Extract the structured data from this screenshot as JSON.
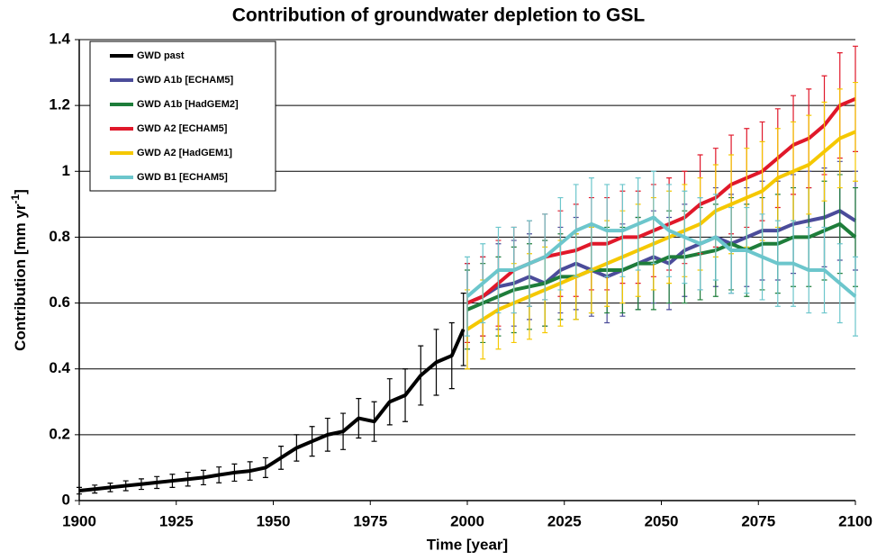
{
  "chart_data": {
    "type": "line",
    "title": "Contribution of groundwater depletion to GSL",
    "xlabel": "Time [year]",
    "ylabel": "Contribution [mm yr",
    "ylabel_sup": "-1",
    "ylabel_end": "]",
    "xlim": [
      1900,
      2100
    ],
    "xticks": [
      1900,
      1925,
      1950,
      1975,
      2000,
      2025,
      2050,
      2075,
      2100
    ],
    "ylim": [
      0,
      1.4
    ],
    "yticks": [
      0,
      0.2,
      0.4,
      0.6,
      0.8,
      1,
      1.2,
      1.4
    ],
    "grid": true,
    "legend": "upper left",
    "series": [
      {
        "name": "GWD past",
        "color": "#000000",
        "x": [
          1900,
          1904,
          1908,
          1912,
          1916,
          1920,
          1924,
          1928,
          1932,
          1936,
          1940,
          1944,
          1948,
          1952,
          1956,
          1960,
          1964,
          1968,
          1972,
          1976,
          1980,
          1984,
          1988,
          1992,
          1996,
          1999
        ],
        "values": [
          0.03,
          0.035,
          0.04,
          0.045,
          0.05,
          0.055,
          0.06,
          0.065,
          0.07,
          0.078,
          0.085,
          0.09,
          0.1,
          0.13,
          0.16,
          0.18,
          0.2,
          0.21,
          0.25,
          0.24,
          0.3,
          0.32,
          0.38,
          0.42,
          0.44,
          0.52
        ],
        "errors": [
          0.01,
          0.012,
          0.013,
          0.015,
          0.016,
          0.018,
          0.02,
          0.021,
          0.022,
          0.024,
          0.026,
          0.028,
          0.03,
          0.035,
          0.04,
          0.045,
          0.05,
          0.055,
          0.06,
          0.06,
          0.07,
          0.08,
          0.09,
          0.1,
          0.1,
          0.11
        ]
      },
      {
        "name": "GWD A1b [ECHAM5]",
        "color": "#4b4c9a",
        "x": [
          2000,
          2004,
          2008,
          2012,
          2016,
          2020,
          2024,
          2028,
          2032,
          2036,
          2040,
          2044,
          2048,
          2052,
          2056,
          2060,
          2064,
          2068,
          2072,
          2076,
          2080,
          2084,
          2088,
          2092,
          2096,
          2100
        ],
        "values": [
          0.6,
          0.62,
          0.65,
          0.66,
          0.68,
          0.66,
          0.7,
          0.72,
          0.7,
          0.68,
          0.7,
          0.72,
          0.74,
          0.72,
          0.76,
          0.78,
          0.8,
          0.78,
          0.8,
          0.82,
          0.82,
          0.84,
          0.85,
          0.86,
          0.88,
          0.85
        ],
        "errors": [
          0.12,
          0.12,
          0.13,
          0.13,
          0.13,
          0.13,
          0.13,
          0.14,
          0.14,
          0.14,
          0.14,
          0.14,
          0.14,
          0.14,
          0.14,
          0.14,
          0.15,
          0.15,
          0.15,
          0.15,
          0.15,
          0.15,
          0.15,
          0.15,
          0.15,
          0.15
        ]
      },
      {
        "name": "GWD A1b [HadGEM2]",
        "color": "#1e7d3a",
        "x": [
          2000,
          2004,
          2008,
          2012,
          2016,
          2020,
          2024,
          2028,
          2032,
          2036,
          2040,
          2044,
          2048,
          2052,
          2056,
          2060,
          2064,
          2068,
          2072,
          2076,
          2080,
          2084,
          2088,
          2092,
          2096,
          2100
        ],
        "values": [
          0.58,
          0.6,
          0.62,
          0.64,
          0.65,
          0.66,
          0.68,
          0.68,
          0.7,
          0.7,
          0.7,
          0.72,
          0.72,
          0.74,
          0.74,
          0.75,
          0.76,
          0.78,
          0.76,
          0.78,
          0.78,
          0.8,
          0.8,
          0.82,
          0.84,
          0.8
        ],
        "errors": [
          0.12,
          0.12,
          0.12,
          0.13,
          0.13,
          0.13,
          0.13,
          0.13,
          0.13,
          0.13,
          0.13,
          0.14,
          0.14,
          0.14,
          0.14,
          0.14,
          0.14,
          0.14,
          0.14,
          0.14,
          0.15,
          0.15,
          0.15,
          0.15,
          0.15,
          0.15
        ]
      },
      {
        "name": "GWD A2 [ECHAM5]",
        "color": "#e0182a",
        "x": [
          2000,
          2004,
          2008,
          2012,
          2016,
          2020,
          2024,
          2028,
          2032,
          2036,
          2040,
          2044,
          2048,
          2052,
          2056,
          2060,
          2064,
          2068,
          2072,
          2076,
          2080,
          2084,
          2088,
          2092,
          2096,
          2100
        ],
        "values": [
          0.6,
          0.62,
          0.66,
          0.7,
          0.72,
          0.74,
          0.75,
          0.76,
          0.78,
          0.78,
          0.8,
          0.8,
          0.82,
          0.84,
          0.86,
          0.9,
          0.92,
          0.96,
          0.98,
          1.0,
          1.04,
          1.08,
          1.1,
          1.14,
          1.2,
          1.22
        ],
        "errors": [
          0.12,
          0.12,
          0.13,
          0.13,
          0.13,
          0.13,
          0.13,
          0.14,
          0.14,
          0.14,
          0.14,
          0.14,
          0.14,
          0.14,
          0.14,
          0.15,
          0.15,
          0.15,
          0.15,
          0.15,
          0.15,
          0.15,
          0.15,
          0.15,
          0.16,
          0.16
        ]
      },
      {
        "name": "GWD A2 [HadGEM1]",
        "color": "#f5c800",
        "x": [
          2000,
          2004,
          2008,
          2012,
          2016,
          2020,
          2024,
          2028,
          2032,
          2036,
          2040,
          2044,
          2048,
          2052,
          2056,
          2060,
          2064,
          2068,
          2072,
          2076,
          2080,
          2084,
          2088,
          2092,
          2096,
          2100
        ],
        "values": [
          0.52,
          0.55,
          0.58,
          0.6,
          0.62,
          0.64,
          0.66,
          0.68,
          0.7,
          0.72,
          0.74,
          0.76,
          0.78,
          0.8,
          0.82,
          0.84,
          0.88,
          0.9,
          0.92,
          0.94,
          0.98,
          1.0,
          1.02,
          1.06,
          1.1,
          1.12
        ],
        "errors": [
          0.12,
          0.12,
          0.12,
          0.12,
          0.13,
          0.13,
          0.13,
          0.13,
          0.13,
          0.13,
          0.14,
          0.14,
          0.14,
          0.14,
          0.14,
          0.14,
          0.14,
          0.15,
          0.15,
          0.15,
          0.15,
          0.15,
          0.15,
          0.15,
          0.15,
          0.15
        ]
      },
      {
        "name": "GWD B1 [ECHAM5]",
        "color": "#6cc6cc",
        "x": [
          2000,
          2004,
          2008,
          2012,
          2016,
          2020,
          2024,
          2028,
          2032,
          2036,
          2040,
          2044,
          2048,
          2052,
          2056,
          2060,
          2064,
          2068,
          2072,
          2076,
          2080,
          2084,
          2088,
          2092,
          2096,
          2100
        ],
        "values": [
          0.62,
          0.66,
          0.7,
          0.7,
          0.72,
          0.74,
          0.78,
          0.82,
          0.84,
          0.82,
          0.82,
          0.84,
          0.86,
          0.82,
          0.8,
          0.78,
          0.8,
          0.76,
          0.76,
          0.74,
          0.72,
          0.72,
          0.7,
          0.7,
          0.66,
          0.62
        ],
        "errors": [
          0.12,
          0.12,
          0.13,
          0.13,
          0.13,
          0.13,
          0.14,
          0.14,
          0.14,
          0.14,
          0.14,
          0.14,
          0.14,
          0.14,
          0.14,
          0.14,
          0.13,
          0.13,
          0.13,
          0.13,
          0.13,
          0.13,
          0.13,
          0.13,
          0.12,
          0.12
        ]
      }
    ]
  }
}
